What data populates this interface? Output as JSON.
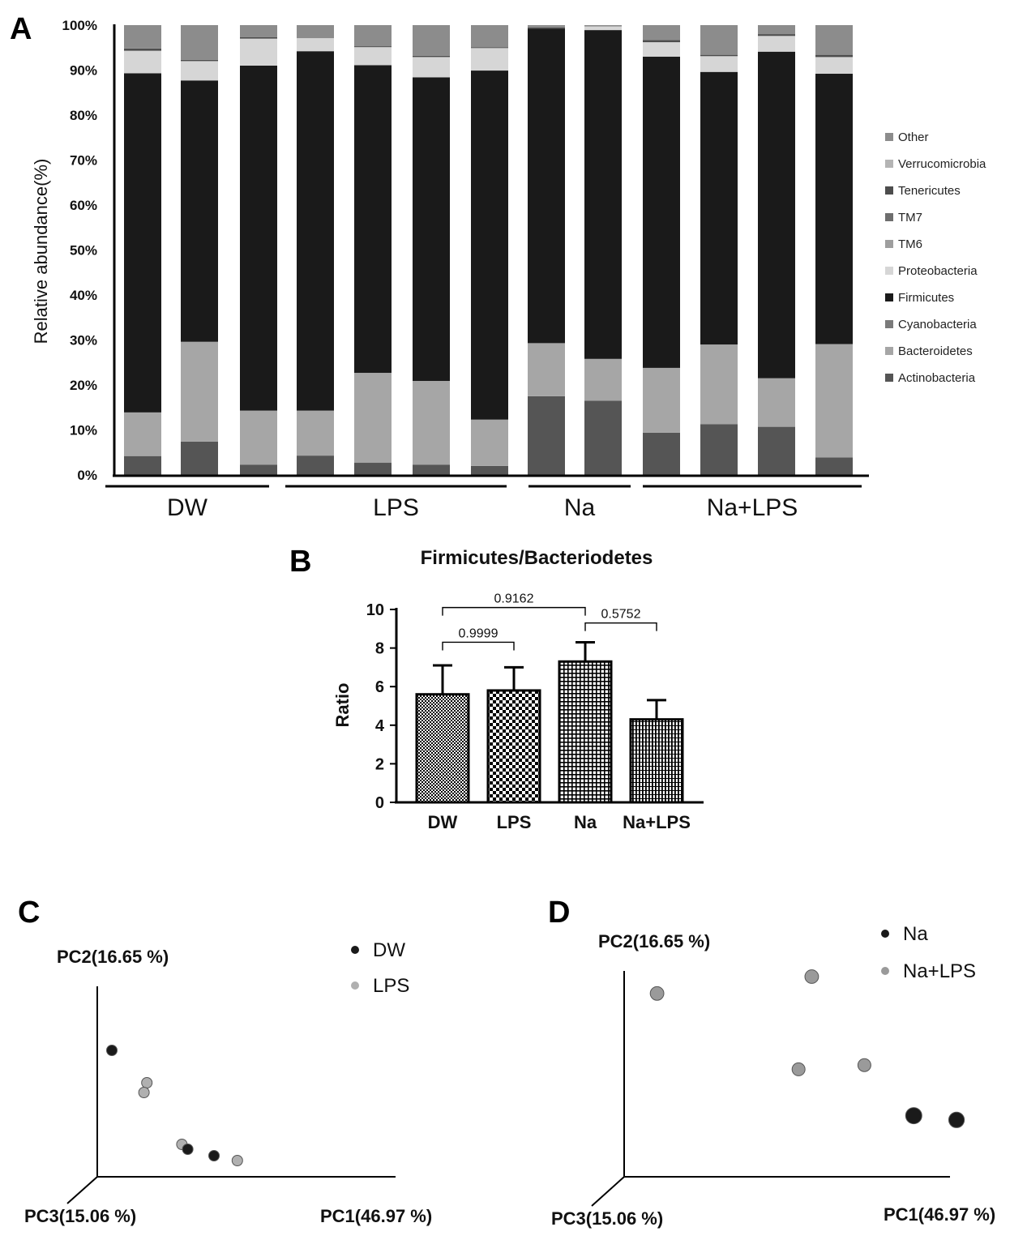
{
  "chart_data": [
    {
      "panel": "A",
      "type": "bar",
      "stacked": true,
      "ylabel": "Relative abundance(%)",
      "ylim": [
        0,
        100
      ],
      "yticks": [
        "0%",
        "10%",
        "20%",
        "30%",
        "40%",
        "50%",
        "60%",
        "70%",
        "80%",
        "90%",
        "100%"
      ],
      "groups": [
        {
          "label": "DW",
          "bars": [
            0,
            1,
            2
          ]
        },
        {
          "label": "LPS",
          "bars": [
            3,
            4,
            5,
            6
          ]
        },
        {
          "label": "Na",
          "bars": [
            7,
            8
          ]
        },
        {
          "label": "Na+LPS",
          "bars": [
            9,
            10,
            11,
            12
          ]
        }
      ],
      "series": [
        {
          "name": "Actinobacteria",
          "color": "#555555",
          "values": [
            4.2,
            7.4,
            2.3,
            4.3,
            2.7,
            2.3,
            2.0,
            17.5,
            16.5,
            9.4,
            11.3,
            10.7,
            3.9
          ]
        },
        {
          "name": "Bacteroidetes",
          "color": "#a6a6a6",
          "values": [
            9.7,
            22.2,
            12.0,
            10.0,
            20.0,
            18.6,
            10.3,
            11.8,
            9.3,
            14.4,
            17.7,
            10.8,
            25.2
          ]
        },
        {
          "name": "Cyanobacteria",
          "color": "#7a7a7a",
          "values": [
            0,
            0,
            0,
            0,
            0,
            0,
            0,
            0,
            0,
            0,
            0,
            0,
            0
          ]
        },
        {
          "name": "Firmicutes",
          "color": "#1a1a1a",
          "values": [
            75.4,
            58.1,
            76.7,
            79.9,
            68.4,
            67.5,
            77.6,
            69.9,
            73.1,
            69.2,
            60.6,
            72.6,
            60.1
          ]
        },
        {
          "name": "Proteobacteria",
          "color": "#d6d6d6",
          "values": [
            5.0,
            4.3,
            6.0,
            2.9,
            4.0,
            4.5,
            5.0,
            0,
            0.8,
            3.2,
            3.5,
            3.5,
            3.7
          ]
        },
        {
          "name": "TM6",
          "color": "#9e9e9e",
          "values": [
            0,
            0,
            0,
            0,
            0,
            0,
            0,
            0,
            0,
            0,
            0,
            0,
            0
          ]
        },
        {
          "name": "TM7",
          "color": "#6e6e6e",
          "values": [
            0,
            0,
            0,
            0,
            0,
            0,
            0,
            0,
            0,
            0,
            0,
            0,
            0
          ]
        },
        {
          "name": "Tenericutes",
          "color": "#4d4d4d",
          "values": [
            0.5,
            0.3,
            0.3,
            0,
            0.2,
            0.3,
            0.2,
            0.3,
            0,
            0.5,
            0.3,
            0.4,
            0.5
          ]
        },
        {
          "name": "Verrucomicrobia",
          "color": "#b4b4b4",
          "values": [
            0,
            0,
            0,
            0,
            0,
            0,
            0,
            0,
            0,
            0,
            0,
            0,
            0
          ]
        },
        {
          "name": "Other",
          "color": "#8c8c8c",
          "values": [
            5.2,
            7.7,
            2.7,
            2.9,
            4.7,
            6.8,
            4.9,
            0.5,
            0.3,
            3.3,
            6.6,
            2.0,
            6.6
          ]
        }
      ],
      "legend_order": [
        "Other",
        "Verrucomicrobia",
        "Tenericutes",
        "TM7",
        "TM6",
        "Proteobacteria",
        "Firmicutes",
        "Cyanobacteria",
        "Bacteroidetes",
        "Actinobacteria"
      ],
      "legend_position": "right"
    },
    {
      "panel": "B",
      "type": "bar",
      "title": "Firmicutes/Bacteriodetes",
      "ylabel": "Ratio",
      "ylim": [
        0,
        10
      ],
      "yticks": [
        "0",
        "2",
        "4",
        "6",
        "8",
        "10"
      ],
      "categories": [
        "DW",
        "LPS",
        "Na",
        "Na+LPS"
      ],
      "values": [
        5.6,
        5.8,
        7.3,
        4.3
      ],
      "errors": [
        1.5,
        1.2,
        1.0,
        1.0
      ],
      "patterns": [
        "dots",
        "checker",
        "grid",
        "vlines"
      ],
      "comparisons": [
        {
          "a": 0,
          "b": 1,
          "label": "0.9999",
          "y": 8.3
        },
        {
          "a": 0,
          "b": 2,
          "label": "0.9162",
          "y": 10.1
        },
        {
          "a": 2,
          "b": 3,
          "label": "0.5752",
          "y": 9.3
        }
      ]
    },
    {
      "panel": "C",
      "type": "scatter",
      "xlabel": "PC1(46.97 %)",
      "ylabel": "PC2(16.65 %)",
      "zlabel": "PC3(15.06 %)",
      "legend": [
        {
          "name": "DW",
          "color": "#1a1a1a"
        },
        {
          "name": "LPS",
          "color": "#b0b0b0"
        }
      ],
      "points": [
        {
          "group": "DW",
          "pc1": 0.05,
          "pc2": 0.78,
          "size": 1
        },
        {
          "group": "LPS",
          "pc1": 0.17,
          "pc2": 0.58,
          "size": 1
        },
        {
          "group": "LPS",
          "pc1": 0.16,
          "pc2": 0.52,
          "size": 1
        },
        {
          "group": "LPS",
          "pc1": 0.29,
          "pc2": 0.2,
          "size": 1
        },
        {
          "group": "DW",
          "pc1": 0.31,
          "pc2": 0.17,
          "size": 1
        },
        {
          "group": "DW",
          "pc1": 0.4,
          "pc2": 0.13,
          "size": 1
        },
        {
          "group": "LPS",
          "pc1": 0.48,
          "pc2": 0.1,
          "size": 1
        }
      ]
    },
    {
      "panel": "D",
      "type": "scatter",
      "xlabel": "PC1(46.97 %)",
      "ylabel": "PC2(16.65 %)",
      "zlabel": "PC3(15.06 %)",
      "legend": [
        {
          "name": "Na",
          "color": "#1a1a1a"
        },
        {
          "name": "Na+LPS",
          "color": "#9a9a9a"
        }
      ],
      "points": [
        {
          "group": "Na+LPS",
          "pc1": 0.1,
          "pc2": 0.87,
          "size": 1.05
        },
        {
          "group": "Na+LPS",
          "pc1": 0.57,
          "pc2": 0.95,
          "size": 1.05
        },
        {
          "group": "Na+LPS",
          "pc1": 0.53,
          "pc2": 0.51,
          "size": 1.0
        },
        {
          "group": "Na+LPS",
          "pc1": 0.73,
          "pc2": 0.53,
          "size": 1.0
        },
        {
          "group": "Na",
          "pc1": 0.88,
          "pc2": 0.29,
          "size": 1.25
        },
        {
          "group": "Na",
          "pc1": 1.01,
          "pc2": 0.27,
          "size": 1.2
        }
      ]
    }
  ],
  "panel_labels": {
    "a": "A",
    "b": "B",
    "c": "C",
    "d": "D"
  },
  "colors": {
    "axis": "#000000",
    "bg": "#ffffff"
  }
}
